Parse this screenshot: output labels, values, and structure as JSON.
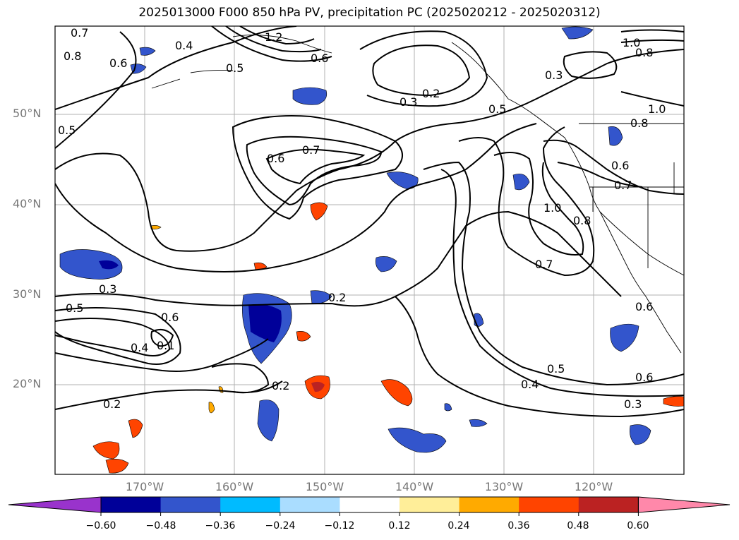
{
  "title": "2025013000 F000 850 hPa PV, precipitation PC (2025020212 - 2025020312)",
  "lat_labels": [
    "50°N",
    "40°N",
    "30°N",
    "20°N"
  ],
  "lon_labels": [
    "170°W",
    "160°W",
    "150°W",
    "140°W",
    "130°W",
    "120°W"
  ],
  "colorbar": {
    "ticks": [
      "−0.60",
      "−0.48",
      "−0.36",
      "−0.24",
      "−0.12",
      "0.12",
      "0.24",
      "0.36",
      "0.48",
      "0.60"
    ],
    "colors": [
      "#9933cc",
      "#000099",
      "#3355cc",
      "#00bbff",
      "#aaddff",
      "#ffffff",
      "#ffee99",
      "#ffaa00",
      "#ff4400",
      "#bb2222",
      "#ff88aa"
    ]
  },
  "contour_labels": [
    "0.7",
    "0.8",
    "0.6",
    "0.4",
    "1.2",
    "0.6",
    "0.5",
    "1.0",
    "0.8",
    "0.3",
    "0.2",
    "0.3",
    "0.5",
    "1.0",
    "0.8",
    "0.6",
    "0.7",
    "0.6",
    "0.7",
    "1.0",
    "0.8",
    "0.7",
    "0.3",
    "0.5",
    "0.6",
    "0.4",
    "0.1",
    "0.2",
    "0.2",
    "0.5",
    "0.4",
    "0.6",
    "0.3",
    "0.2",
    "0.5",
    "0.6"
  ]
}
